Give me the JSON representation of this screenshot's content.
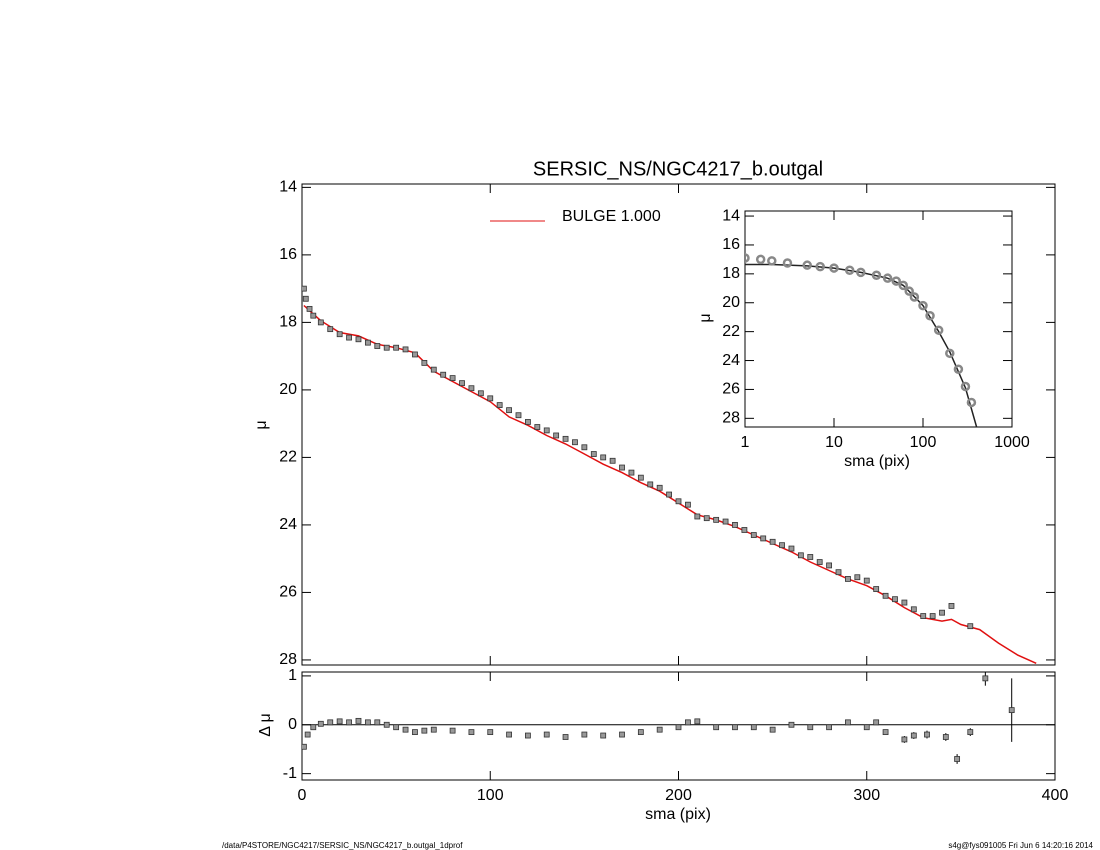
{
  "chart_data": [
    {
      "type": "scatter",
      "title": "SERSIC_NS/NGC4217_b.outgal",
      "ylabel": "μ",
      "xlim": [
        0,
        400
      ],
      "ylim": [
        28.15,
        13.9
      ],
      "yticks": [
        14,
        16,
        18,
        20,
        22,
        24,
        26,
        28
      ],
      "x": [
        1,
        2,
        4,
        6,
        10,
        15,
        20,
        25,
        30,
        35,
        40,
        45,
        50,
        55,
        60,
        65,
        70,
        75,
        80,
        85,
        90,
        95,
        100,
        105,
        110,
        115,
        120,
        125,
        130,
        135,
        140,
        145,
        150,
        155,
        160,
        165,
        170,
        175,
        180,
        185,
        190,
        195,
        200,
        205,
        210,
        215,
        220,
        225,
        230,
        235,
        240,
        245,
        250,
        255,
        260,
        265,
        270,
        275,
        280,
        285,
        290,
        295,
        300,
        305,
        310,
        315,
        320,
        325,
        330,
        335,
        340,
        345,
        355
      ],
      "values": [
        17.0,
        17.3,
        17.6,
        17.8,
        18.0,
        18.2,
        18.35,
        18.45,
        18.5,
        18.6,
        18.7,
        18.75,
        18.75,
        18.8,
        18.95,
        19.2,
        19.4,
        19.55,
        19.65,
        19.8,
        19.95,
        20.1,
        20.25,
        20.45,
        20.6,
        20.75,
        20.95,
        21.1,
        21.2,
        21.35,
        21.45,
        21.55,
        21.7,
        21.9,
        22.0,
        22.1,
        22.3,
        22.45,
        22.6,
        22.8,
        22.9,
        23.1,
        23.3,
        23.4,
        23.75,
        23.8,
        23.85,
        23.9,
        24.0,
        24.15,
        24.3,
        24.4,
        24.5,
        24.6,
        24.7,
        24.9,
        24.95,
        25.1,
        25.2,
        25.4,
        25.6,
        25.55,
        25.65,
        25.9,
        26.1,
        26.2,
        26.3,
        26.5,
        26.7,
        26.7,
        26.6,
        26.4,
        27.0
      ],
      "color": "#999999",
      "model": {
        "name": "BULGE  1.000",
        "color": "#e01010",
        "x": [
          1,
          5,
          10,
          20,
          30,
          40,
          50,
          60,
          70,
          80,
          90,
          100,
          110,
          120,
          130,
          140,
          150,
          160,
          170,
          180,
          190,
          200,
          210,
          220,
          230,
          240,
          250,
          260,
          270,
          280,
          290,
          300,
          310,
          320,
          330,
          340,
          345,
          350,
          360,
          370,
          380,
          390
        ],
        "values": [
          17.5,
          17.7,
          17.95,
          18.3,
          18.4,
          18.65,
          18.75,
          18.9,
          19.45,
          19.75,
          20.05,
          20.35,
          20.8,
          21.05,
          21.35,
          21.6,
          21.9,
          22.2,
          22.45,
          22.75,
          23.0,
          23.35,
          23.7,
          23.85,
          24.05,
          24.3,
          24.55,
          24.8,
          25.1,
          25.35,
          25.6,
          25.8,
          26.1,
          26.45,
          26.75,
          26.85,
          26.8,
          26.95,
          27.1,
          27.5,
          27.85,
          28.1
        ]
      }
    },
    {
      "type": "scatter",
      "xlabel": "sma (pix)",
      "ylabel": "Δ μ",
      "xlim": [
        0,
        400
      ],
      "ylim": [
        -1.13,
        1.08
      ],
      "xticks": [
        0,
        100,
        200,
        300,
        400
      ],
      "yticks": [
        1,
        0,
        -1
      ],
      "hline": 0,
      "x": [
        1,
        3,
        6,
        10,
        15,
        20,
        25,
        30,
        35,
        40,
        45,
        50,
        55,
        60,
        65,
        70,
        80,
        90,
        100,
        110,
        120,
        130,
        140,
        150,
        160,
        170,
        180,
        190,
        200,
        205,
        210,
        220,
        230,
        240,
        250,
        260,
        270,
        280,
        290,
        300,
        305,
        310,
        320,
        325,
        332,
        342,
        348,
        355,
        363,
        377
      ],
      "values": [
        -0.45,
        -0.2,
        -0.05,
        0.02,
        0.05,
        0.07,
        0.05,
        0.08,
        0.05,
        0.05,
        0,
        -0.05,
        -0.1,
        -0.15,
        -0.12,
        -0.1,
        -0.12,
        -0.15,
        -0.15,
        -0.2,
        -0.22,
        -0.2,
        -0.25,
        -0.2,
        -0.22,
        -0.2,
        -0.15,
        -0.1,
        -0.05,
        0.05,
        0.07,
        -0.05,
        -0.05,
        -0.05,
        -0.1,
        0,
        -0.05,
        -0.05,
        0.05,
        -0.05,
        0.05,
        -0.15,
        -0.3,
        -0.22,
        -0.2,
        -0.25,
        -0.7,
        -0.15,
        0.95,
        0.3
      ],
      "errors": [
        null,
        null,
        null,
        null,
        null,
        null,
        null,
        null,
        null,
        null,
        null,
        null,
        null,
        null,
        null,
        null,
        null,
        null,
        null,
        null,
        null,
        null,
        null,
        null,
        null,
        null,
        null,
        null,
        null,
        null,
        null,
        null,
        null,
        null,
        null,
        null,
        null,
        null,
        null,
        null,
        null,
        null,
        0.07,
        0.07,
        0.08,
        0.08,
        0.1,
        0.08,
        0.15,
        0.65
      ],
      "color": "#999999"
    },
    {
      "type": "scatter",
      "xlabel": "sma (pix)",
      "ylabel": "μ",
      "xlog": true,
      "xlim": [
        1,
        1000
      ],
      "ylim": [
        28.6,
        13.65
      ],
      "xticks": [
        1,
        10,
        100,
        1000
      ],
      "yticks": [
        14,
        16,
        18,
        20,
        22,
        24,
        26,
        28
      ],
      "x": [
        1,
        1.5,
        2,
        3,
        5,
        7,
        10,
        15,
        20,
        30,
        40,
        50,
        60,
        70,
        80,
        100,
        120,
        150,
        200,
        250,
        300,
        350
      ],
      "values": [
        16.9,
        17.0,
        17.1,
        17.25,
        17.4,
        17.5,
        17.6,
        17.75,
        17.9,
        18.1,
        18.3,
        18.5,
        18.8,
        19.2,
        19.6,
        20.2,
        20.9,
        21.9,
        23.5,
        24.6,
        25.8,
        26.9
      ],
      "color": "#888888",
      "model": {
        "color": "#222222",
        "x": [
          1,
          2,
          5,
          10,
          20,
          40,
          60,
          100,
          150,
          200,
          300,
          400
        ],
        "values": [
          17.35,
          17.35,
          17.45,
          17.6,
          17.9,
          18.3,
          18.8,
          20.2,
          22.0,
          23.4,
          25.9,
          28.6
        ]
      }
    }
  ],
  "footer": {
    "left": "/data/P4STORE/NGC4217/SERSIC_NS/NGC4217_b.outgal_1dprof",
    "right": "s4g@fys091005  Fri Jun  6 14:20:16 2014"
  }
}
